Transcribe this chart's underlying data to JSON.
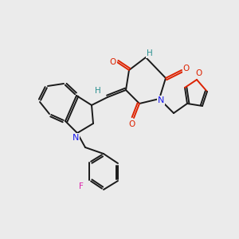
{
  "bg_color": "#ebebeb",
  "bond_color": "#1a1a1a",
  "atom_colors": {
    "N": "#1a1aee",
    "O": "#dd2200",
    "F": "#dd22aa",
    "H_label": "#2a9090"
  },
  "figsize": [
    3.0,
    3.0
  ],
  "dpi": 100
}
